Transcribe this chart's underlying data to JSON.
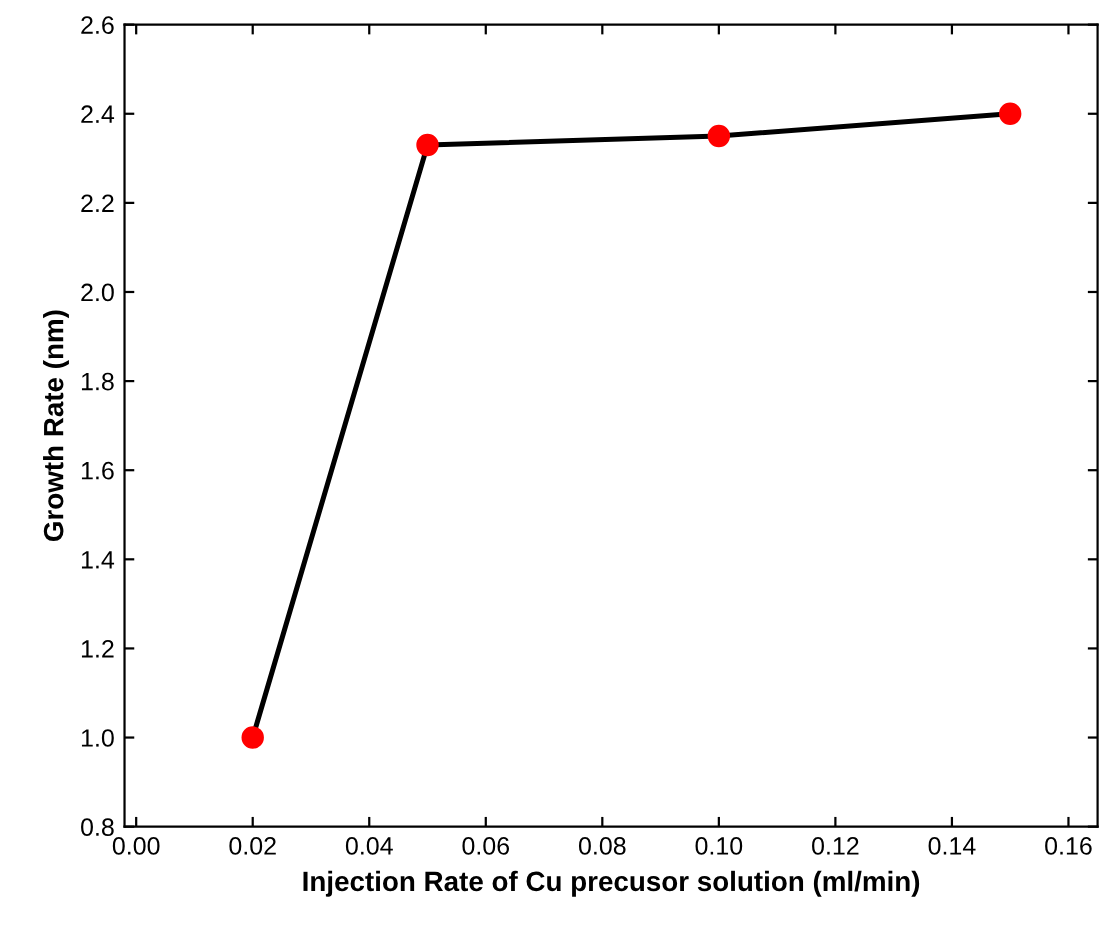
{
  "chart_data": {
    "type": "line",
    "xlabel": "Injection Rate of Cu precusor solution (ml/min)",
    "ylabel": "Growth Rate (nm)",
    "x": [
      0.02,
      0.05,
      0.1,
      0.15
    ],
    "series": [
      {
        "color": "#000000",
        "colors": [
          "#ff0000",
          "#ff0000",
          "#ff0000",
          "#ff0000"
        ],
        "values": [
          1.0,
          2.33,
          2.35,
          2.4
        ]
      }
    ],
    "marker": "circle",
    "line_style": "solid",
    "grid": false,
    "legend": false,
    "xlim": [
      -0.002,
      0.165
    ],
    "ylim": [
      0.8,
      2.6
    ],
    "xticks": [
      {
        "value": 0.0,
        "label": "0.00"
      },
      {
        "value": 0.02,
        "label": "0.02"
      },
      {
        "value": 0.04,
        "label": "0.04"
      },
      {
        "value": 0.06,
        "label": "0.06"
      },
      {
        "value": 0.08,
        "label": "0.08"
      },
      {
        "value": 0.1,
        "label": "0.10"
      },
      {
        "value": 0.12,
        "label": "0.12"
      },
      {
        "value": 0.14,
        "label": "0.14"
      },
      {
        "value": 0.16,
        "label": "0.16"
      }
    ],
    "yticks": [
      0.8,
      {
        "value": 1.0,
        "label": "1.0"
      },
      1.2,
      1.4,
      1.6,
      1.8,
      {
        "value": 2.0,
        "label": "2.0"
      },
      2.2,
      2.4,
      2.6
    ]
  }
}
